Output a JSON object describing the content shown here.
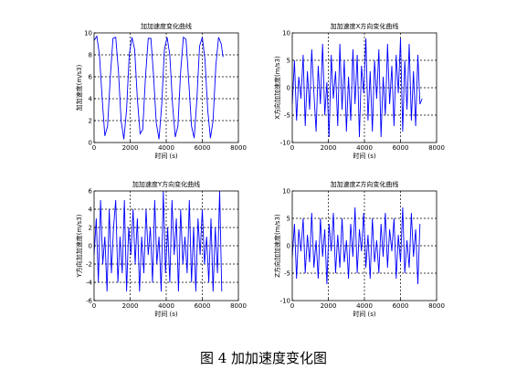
{
  "caption": "图 4  加加速度变化图",
  "colors": {
    "line": "#0000ff",
    "axis": "#000000",
    "grid": "#000000"
  },
  "chart_data": [
    {
      "type": "line",
      "title": "加加速度变化曲线",
      "xlabel": "时间 (s)",
      "ylabel": "加加速度(m/s3)",
      "xlim": [
        0,
        8000
      ],
      "ylim": [
        0,
        10
      ],
      "xticks": [
        "0",
        "2000",
        "4000",
        "6000",
        "8000"
      ],
      "yticks": [
        "0",
        "2",
        "4",
        "6",
        "8",
        "10"
      ],
      "grid": "dashed",
      "series": [
        {
          "x": [
            0,
            150,
            300,
            450,
            600,
            750,
            900,
            1050,
            1200,
            1350,
            1500,
            1650,
            1800,
            1950,
            2100,
            2250,
            2400,
            2550,
            2700,
            2850,
            3000,
            3150,
            3300,
            3450,
            3600,
            3750,
            3900,
            4050,
            4200,
            4350,
            4500,
            4650,
            4800,
            4950,
            5100,
            5250,
            5400,
            5550,
            5700,
            5850,
            6000,
            6150,
            6300,
            6450,
            6600,
            6750,
            6900,
            7050,
            7150
          ],
          "y": [
            9.3,
            9.7,
            8.0,
            4.0,
            0.6,
            1.5,
            6.0,
            9.5,
            9.6,
            6.5,
            2.0,
            0.3,
            3.0,
            8.0,
            9.6,
            8.5,
            4.0,
            0.8,
            1.2,
            6.0,
            9.5,
            9.5,
            6.0,
            1.8,
            0.3,
            3.5,
            8.5,
            9.6,
            8.0,
            3.5,
            0.5,
            1.5,
            6.5,
            9.6,
            9.4,
            5.5,
            1.5,
            0.4,
            4.0,
            8.8,
            9.6,
            7.5,
            3.0,
            0.4,
            2.0,
            7.0,
            9.6,
            9.0,
            7.8
          ]
        }
      ]
    },
    {
      "type": "line",
      "title": "加加速度X方向变化曲线",
      "xlabel": "时间 (s)",
      "ylabel": "X方向加加速度(m/s3)",
      "xlim": [
        0,
        8000
      ],
      "ylim": [
        -10,
        10
      ],
      "xticks": [
        "0",
        "2000",
        "4000",
        "6000",
        "8000"
      ],
      "yticks": [
        "-10",
        "-5",
        "0",
        "5",
        "10"
      ],
      "grid": "dashed",
      "series": [
        {
          "x": [
            0,
            120,
            240,
            360,
            480,
            600,
            720,
            840,
            960,
            1080,
            1200,
            1320,
            1440,
            1560,
            1680,
            1800,
            1920,
            2040,
            2160,
            2280,
            2400,
            2520,
            2640,
            2760,
            2880,
            3000,
            3120,
            3240,
            3360,
            3480,
            3600,
            3720,
            3840,
            3960,
            4080,
            4200,
            4320,
            4440,
            4560,
            4680,
            4800,
            4920,
            5040,
            5160,
            5280,
            5400,
            5520,
            5640,
            5760,
            5880,
            6000,
            6120,
            6240,
            6360,
            6480,
            6600,
            6720,
            6840,
            6960,
            7080,
            7200
          ],
          "y": [
            -3,
            5,
            -6,
            2,
            -2,
            6,
            -7,
            3,
            -4,
            7,
            -1,
            -8,
            4,
            -3,
            8,
            -5,
            1,
            -9,
            6,
            -2,
            3,
            -7,
            8,
            -4,
            5,
            -8,
            2,
            -6,
            7,
            -3,
            6,
            -9,
            4,
            -1,
            9,
            -6,
            3,
            -8,
            5,
            -2,
            7,
            -9,
            2,
            -5,
            8,
            -3,
            4,
            -7,
            6,
            -1,
            9,
            -8,
            5,
            -4,
            8,
            -6,
            3,
            -7,
            6,
            -3,
            -2
          ]
        }
      ]
    },
    {
      "type": "line",
      "title": "加加速度Y方向变化曲线",
      "xlabel": "时间 (s)",
      "ylabel": "Y方向加加速度(m/s3)",
      "xlim": [
        0,
        8000
      ],
      "ylim": [
        -6,
        6
      ],
      "xticks": [
        "0",
        "2000",
        "4000",
        "6000",
        "8000"
      ],
      "yticks": [
        "-6",
        "-4",
        "-2",
        "0",
        "2",
        "4",
        "6"
      ],
      "grid": "dashed",
      "series": [
        {
          "x": [
            0,
            120,
            240,
            360,
            480,
            600,
            720,
            840,
            960,
            1080,
            1200,
            1320,
            1440,
            1560,
            1680,
            1800,
            1920,
            2040,
            2160,
            2280,
            2400,
            2520,
            2640,
            2760,
            2880,
            3000,
            3120,
            3240,
            3360,
            3480,
            3600,
            3720,
            3840,
            3960,
            4080,
            4200,
            4320,
            4440,
            4560,
            4680,
            4800,
            4920,
            5040,
            5160,
            5280,
            5400,
            5520,
            5640,
            5760,
            5880,
            6000,
            6120,
            6240,
            6360,
            6480,
            6600,
            6720,
            6840,
            6960,
            7080
          ],
          "y": [
            -1,
            3,
            -4,
            5,
            -2,
            1,
            -5,
            4,
            -3,
            2,
            5,
            -4,
            1,
            -3,
            5,
            -5,
            2,
            -1,
            4,
            -2,
            3,
            -5,
            1,
            -3,
            4,
            -1,
            2,
            -4,
            5,
            -2,
            1,
            -5,
            6,
            -3,
            2,
            -4,
            5,
            -1,
            3,
            -5,
            4,
            -2,
            1,
            -3,
            5,
            -4,
            2,
            -5,
            3,
            -1,
            4,
            -2,
            1,
            -4,
            3,
            -5,
            2,
            -3,
            6,
            -5
          ]
        }
      ]
    },
    {
      "type": "line",
      "title": "加加速度Z方向变化曲线",
      "xlabel": "时间 (s)",
      "ylabel": "Z方向加加速度(m/s3)",
      "xlim": [
        0,
        8000
      ],
      "ylim": [
        -10,
        10
      ],
      "xticks": [
        "0",
        "2000",
        "4000",
        "6000",
        "8000"
      ],
      "yticks": [
        "-10",
        "-5",
        "0",
        "5",
        "10"
      ],
      "grid": "dashed",
      "series": [
        {
          "x": [
            0,
            120,
            240,
            360,
            480,
            600,
            720,
            840,
            960,
            1080,
            1200,
            1320,
            1440,
            1560,
            1680,
            1800,
            1920,
            2040,
            2160,
            2280,
            2400,
            2520,
            2640,
            2760,
            2880,
            3000,
            3120,
            3240,
            3360,
            3480,
            3600,
            3720,
            3840,
            3960,
            4080,
            4200,
            4320,
            4440,
            4560,
            4680,
            4800,
            4920,
            5040,
            5160,
            5280,
            5400,
            5520,
            5640,
            5760,
            5880,
            6000,
            6120,
            6240,
            6360,
            6480,
            6600,
            6720,
            6840,
            6960,
            7080
          ],
          "y": [
            -2,
            4,
            -6,
            3,
            -1,
            5,
            -5,
            2,
            -3,
            6,
            -4,
            1,
            -6,
            5,
            -2,
            3,
            -7,
            4,
            -1,
            6,
            -5,
            2,
            -4,
            5,
            -3,
            1,
            -6,
            4,
            -2,
            7,
            -5,
            3,
            -1,
            6,
            -4,
            2,
            -6,
            5,
            -3,
            1,
            -5,
            4,
            -2,
            6,
            -4,
            3,
            -1,
            5,
            -6,
            2,
            -3,
            7,
            -5,
            1,
            -4,
            6,
            -2,
            3,
            -7,
            4
          ]
        }
      ]
    }
  ]
}
